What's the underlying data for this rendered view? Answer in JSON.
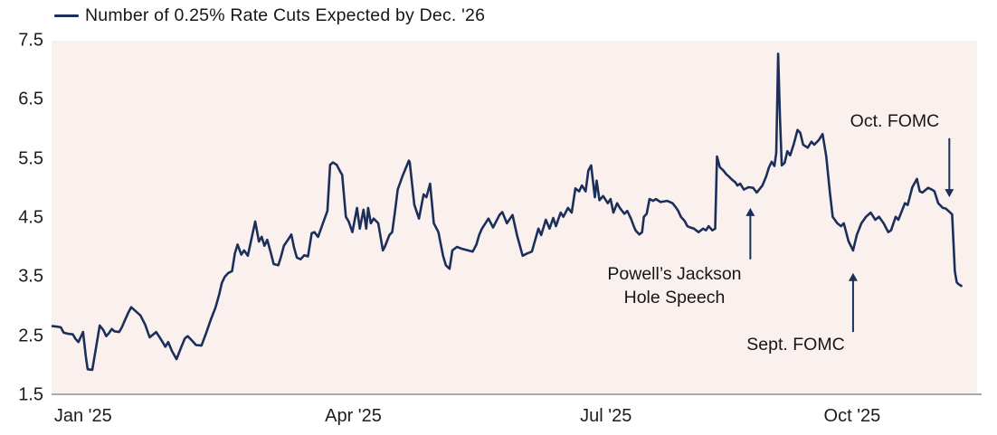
{
  "legend": {
    "label": "Number of 0.25% Rate Cuts Expected by Dec. '26"
  },
  "colors": {
    "line": "#1c2f5a",
    "plot_background": "#faf1ef",
    "axis": "#a9a9a9",
    "text": "#1c1c1c"
  },
  "chart_data": {
    "type": "line",
    "title": "Number of 0.25% Rate Cuts Expected by Dec. '26",
    "xlabel": "",
    "ylabel": "",
    "ylim": [
      1.5,
      7.5
    ],
    "grid": false,
    "legend_position": "top-left",
    "x_unit": "percent of timeline (Dec '24 through early Nov '25)",
    "y_ticks": [
      "7.5",
      "6.5",
      "5.5",
      "4.5",
      "3.5",
      "2.5",
      "1.5"
    ],
    "x_ticks": [
      {
        "label": "Jan '25",
        "pos_pct": 3.4
      },
      {
        "label": "Apr '25",
        "pos_pct": 32.6
      },
      {
        "label": "Jul '25",
        "pos_pct": 59.9
      },
      {
        "label": "Oct '25",
        "pos_pct": 86.5
      }
    ],
    "points": [
      [
        0.1,
        2.67
      ],
      [
        0.6,
        2.66
      ],
      [
        1.0,
        2.65
      ],
      [
        1.3,
        2.56
      ],
      [
        1.8,
        2.54
      ],
      [
        2.3,
        2.53
      ],
      [
        2.6,
        2.45
      ],
      [
        2.9,
        2.4
      ],
      [
        3.2,
        2.5
      ],
      [
        3.4,
        2.57
      ],
      [
        3.7,
        2.15
      ],
      [
        3.9,
        1.94
      ],
      [
        4.4,
        1.93
      ],
      [
        4.8,
        2.3
      ],
      [
        5.2,
        2.68
      ],
      [
        5.6,
        2.6
      ],
      [
        5.9,
        2.5
      ],
      [
        6.2,
        2.55
      ],
      [
        6.5,
        2.62
      ],
      [
        6.8,
        2.58
      ],
      [
        7.3,
        2.57
      ],
      [
        7.6,
        2.65
      ],
      [
        7.9,
        2.76
      ],
      [
        8.3,
        2.9
      ],
      [
        8.6,
        2.99
      ],
      [
        9.1,
        2.92
      ],
      [
        9.6,
        2.85
      ],
      [
        10.1,
        2.7
      ],
      [
        10.6,
        2.48
      ],
      [
        11.0,
        2.53
      ],
      [
        11.3,
        2.57
      ],
      [
        11.8,
        2.45
      ],
      [
        12.3,
        2.32
      ],
      [
        12.6,
        2.4
      ],
      [
        13.0,
        2.25
      ],
      [
        13.5,
        2.11
      ],
      [
        14.0,
        2.31
      ],
      [
        14.4,
        2.46
      ],
      [
        14.7,
        2.5
      ],
      [
        15.2,
        2.42
      ],
      [
        15.6,
        2.35
      ],
      [
        16.2,
        2.34
      ],
      [
        16.7,
        2.55
      ],
      [
        17.2,
        2.78
      ],
      [
        17.7,
        2.98
      ],
      [
        18.1,
        3.2
      ],
      [
        18.4,
        3.4
      ],
      [
        18.7,
        3.5
      ],
      [
        19.1,
        3.57
      ],
      [
        19.5,
        3.6
      ],
      [
        19.8,
        3.9
      ],
      [
        20.1,
        4.05
      ],
      [
        20.5,
        3.88
      ],
      [
        20.8,
        3.95
      ],
      [
        21.2,
        3.86
      ],
      [
        21.6,
        4.15
      ],
      [
        22.0,
        4.44
      ],
      [
        22.4,
        4.1
      ],
      [
        22.7,
        4.18
      ],
      [
        23.0,
        4.03
      ],
      [
        23.3,
        4.13
      ],
      [
        23.7,
        3.9
      ],
      [
        24.0,
        3.72
      ],
      [
        24.5,
        3.7
      ],
      [
        24.8,
        3.85
      ],
      [
        25.1,
        4.03
      ],
      [
        25.5,
        4.12
      ],
      [
        25.9,
        4.22
      ],
      [
        26.2,
        4.0
      ],
      [
        26.5,
        3.83
      ],
      [
        26.9,
        3.8
      ],
      [
        27.3,
        3.87
      ],
      [
        27.7,
        3.85
      ],
      [
        28.1,
        4.24
      ],
      [
        28.4,
        4.26
      ],
      [
        28.8,
        4.18
      ],
      [
        29.3,
        4.4
      ],
      [
        29.8,
        4.62
      ],
      [
        30.1,
        5.4
      ],
      [
        30.4,
        5.44
      ],
      [
        30.8,
        5.4
      ],
      [
        31.2,
        5.28
      ],
      [
        31.4,
        5.23
      ],
      [
        31.8,
        4.52
      ],
      [
        32.1,
        4.44
      ],
      [
        32.5,
        4.26
      ],
      [
        33.0,
        4.67
      ],
      [
        33.3,
        4.32
      ],
      [
        33.7,
        4.64
      ],
      [
        34.0,
        4.32
      ],
      [
        34.2,
        4.67
      ],
      [
        34.5,
        4.41
      ],
      [
        34.8,
        4.49
      ],
      [
        35.3,
        4.41
      ],
      [
        35.8,
        3.95
      ],
      [
        36.0,
        4.01
      ],
      [
        36.5,
        4.21
      ],
      [
        36.8,
        4.26
      ],
      [
        37.1,
        4.6
      ],
      [
        37.4,
        4.98
      ],
      [
        37.9,
        5.2
      ],
      [
        38.6,
        5.47
      ],
      [
        38.7,
        5.44
      ],
      [
        39.2,
        4.72
      ],
      [
        39.7,
        4.49
      ],
      [
        40.2,
        4.9
      ],
      [
        40.5,
        4.85
      ],
      [
        40.9,
        5.08
      ],
      [
        41.3,
        4.41
      ],
      [
        41.8,
        4.26
      ],
      [
        42.3,
        3.86
      ],
      [
        42.6,
        3.7
      ],
      [
        43.0,
        3.64
      ],
      [
        43.3,
        3.95
      ],
      [
        43.8,
        4.01
      ],
      [
        44.3,
        3.98
      ],
      [
        45.0,
        3.95
      ],
      [
        45.5,
        3.93
      ],
      [
        45.9,
        4.05
      ],
      [
        46.2,
        4.21
      ],
      [
        46.5,
        4.32
      ],
      [
        47.2,
        4.49
      ],
      [
        47.7,
        4.34
      ],
      [
        48.4,
        4.55
      ],
      [
        48.7,
        4.6
      ],
      [
        49.2,
        4.41
      ],
      [
        49.8,
        4.55
      ],
      [
        50.3,
        4.2
      ],
      [
        50.9,
        3.86
      ],
      [
        51.4,
        3.9
      ],
      [
        51.9,
        3.93
      ],
      [
        52.6,
        4.32
      ],
      [
        52.9,
        4.21
      ],
      [
        53.4,
        4.47
      ],
      [
        53.8,
        4.32
      ],
      [
        54.2,
        4.5
      ],
      [
        54.5,
        4.36
      ],
      [
        55.0,
        4.59
      ],
      [
        55.3,
        4.52
      ],
      [
        55.8,
        4.67
      ],
      [
        56.2,
        4.59
      ],
      [
        56.6,
        5.0
      ],
      [
        57.0,
        4.95
      ],
      [
        57.3,
        5.05
      ],
      [
        57.7,
        4.95
      ],
      [
        58.0,
        5.3
      ],
      [
        58.3,
        5.39
      ],
      [
        58.7,
        4.85
      ],
      [
        58.9,
        5.13
      ],
      [
        59.2,
        4.8
      ],
      [
        59.6,
        4.87
      ],
      [
        60.1,
        4.75
      ],
      [
        60.4,
        4.82
      ],
      [
        60.7,
        4.59
      ],
      [
        61.1,
        4.75
      ],
      [
        61.4,
        4.67
      ],
      [
        61.9,
        4.57
      ],
      [
        62.2,
        4.62
      ],
      [
        62.6,
        4.49
      ],
      [
        62.9,
        4.36
      ],
      [
        63.1,
        4.29
      ],
      [
        63.5,
        4.22
      ],
      [
        63.8,
        4.26
      ],
      [
        64.0,
        4.52
      ],
      [
        64.3,
        4.57
      ],
      [
        64.6,
        4.82
      ],
      [
        65.0,
        4.79
      ],
      [
        65.3,
        4.82
      ],
      [
        65.8,
        4.77
      ],
      [
        66.5,
        4.79
      ],
      [
        67.1,
        4.75
      ],
      [
        67.5,
        4.67
      ],
      [
        67.7,
        4.62
      ],
      [
        68.0,
        4.52
      ],
      [
        68.4,
        4.45
      ],
      [
        68.7,
        4.36
      ],
      [
        69.0,
        4.34
      ],
      [
        69.4,
        4.32
      ],
      [
        69.9,
        4.26
      ],
      [
        70.4,
        4.32
      ],
      [
        70.7,
        4.29
      ],
      [
        71.0,
        4.36
      ],
      [
        71.4,
        4.29
      ],
      [
        71.7,
        4.32
      ],
      [
        71.9,
        5.54
      ],
      [
        72.2,
        5.36
      ],
      [
        72.6,
        5.3
      ],
      [
        72.9,
        5.24
      ],
      [
        73.2,
        5.2
      ],
      [
        73.5,
        5.15
      ],
      [
        73.9,
        5.1
      ],
      [
        74.1,
        5.05
      ],
      [
        74.4,
        5.08
      ],
      [
        74.8,
        4.98
      ],
      [
        75.3,
        5.02
      ],
      [
        75.8,
        5.01
      ],
      [
        76.2,
        4.93
      ],
      [
        76.8,
        5.05
      ],
      [
        77.2,
        5.2
      ],
      [
        77.5,
        5.35
      ],
      [
        77.8,
        5.45
      ],
      [
        78.1,
        5.38
      ],
      [
        78.3,
        5.6
      ],
      [
        78.5,
        7.28
      ],
      [
        78.7,
        6.2
      ],
      [
        78.9,
        5.39
      ],
      [
        79.2,
        5.43
      ],
      [
        79.5,
        5.63
      ],
      [
        79.8,
        5.56
      ],
      [
        80.2,
        5.75
      ],
      [
        80.6,
        5.99
      ],
      [
        80.9,
        5.94
      ],
      [
        81.2,
        5.74
      ],
      [
        81.7,
        5.69
      ],
      [
        82.1,
        5.79
      ],
      [
        82.4,
        5.74
      ],
      [
        82.9,
        5.82
      ],
      [
        83.3,
        5.92
      ],
      [
        83.7,
        5.54
      ],
      [
        84.1,
        4.93
      ],
      [
        84.4,
        4.52
      ],
      [
        84.9,
        4.41
      ],
      [
        85.3,
        4.36
      ],
      [
        85.6,
        4.41
      ],
      [
        86.1,
        4.11
      ],
      [
        86.6,
        3.95
      ],
      [
        87.0,
        4.21
      ],
      [
        87.5,
        4.41
      ],
      [
        88.0,
        4.52
      ],
      [
        88.5,
        4.59
      ],
      [
        89.0,
        4.47
      ],
      [
        89.4,
        4.52
      ],
      [
        89.9,
        4.41
      ],
      [
        90.4,
        4.26
      ],
      [
        90.7,
        4.29
      ],
      [
        91.2,
        4.52
      ],
      [
        91.5,
        4.47
      ],
      [
        92.2,
        4.75
      ],
      [
        92.5,
        4.72
      ],
      [
        93.0,
        5.02
      ],
      [
        93.5,
        5.16
      ],
      [
        93.8,
        4.95
      ],
      [
        94.1,
        4.93
      ],
      [
        94.7,
        5.01
      ],
      [
        95.1,
        4.98
      ],
      [
        95.4,
        4.95
      ],
      [
        95.8,
        4.75
      ],
      [
        96.3,
        4.67
      ],
      [
        96.6,
        4.66
      ],
      [
        96.9,
        4.62
      ],
      [
        97.3,
        4.56
      ],
      [
        97.6,
        3.6
      ],
      [
        97.8,
        3.41
      ],
      [
        98.0,
        3.38
      ],
      [
        98.3,
        3.35
      ]
    ],
    "annotations": [
      {
        "label": "Powell’s Jackson\nHole Speech",
        "x_pct": 67.3,
        "y_val": 3.35,
        "arrow": {
          "x_pct": 75.5,
          "from_val": 3.8,
          "to_val": 4.67,
          "dir": "up"
        }
      },
      {
        "label": "Sept. FOMC",
        "x_pct": 80.4,
        "y_val": 2.36,
        "arrow": {
          "x_pct": 86.6,
          "from_val": 2.57,
          "to_val": 3.57,
          "dir": "up"
        }
      },
      {
        "label": "Oct. FOMC",
        "x_pct": 91.1,
        "y_val": 6.14,
        "arrow": {
          "x_pct": 97.0,
          "from_val": 5.85,
          "to_val": 4.85,
          "dir": "down"
        }
      }
    ]
  }
}
